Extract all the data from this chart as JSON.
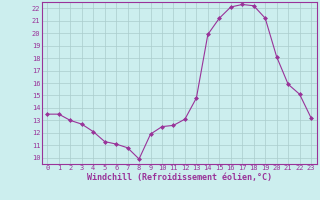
{
  "x": [
    0,
    1,
    2,
    3,
    4,
    5,
    6,
    7,
    8,
    9,
    10,
    11,
    12,
    13,
    14,
    15,
    16,
    17,
    18,
    19,
    20,
    21,
    22,
    23
  ],
  "y": [
    13.5,
    13.5,
    13.0,
    12.7,
    12.1,
    11.3,
    11.1,
    10.8,
    9.9,
    11.9,
    12.5,
    12.6,
    13.1,
    14.8,
    19.9,
    21.2,
    22.1,
    22.3,
    22.2,
    21.2,
    18.1,
    15.9,
    15.1,
    13.2
  ],
  "line_color": "#993399",
  "marker": "D",
  "marker_size": 2.0,
  "bg_color": "#cceeee",
  "grid_color": "#aacccc",
  "axis_color": "#993399",
  "xlabel": "Windchill (Refroidissement éolien,°C)",
  "ylabel": "",
  "xlim": [
    -0.5,
    23.5
  ],
  "ylim": [
    9.5,
    22.5
  ],
  "yticks": [
    10,
    11,
    12,
    13,
    14,
    15,
    16,
    17,
    18,
    19,
    20,
    21,
    22
  ],
  "xticks": [
    0,
    1,
    2,
    3,
    4,
    5,
    6,
    7,
    8,
    9,
    10,
    11,
    12,
    13,
    14,
    15,
    16,
    17,
    18,
    19,
    20,
    21,
    22,
    23
  ],
  "tick_fontsize": 5.0,
  "label_fontsize": 6.0
}
